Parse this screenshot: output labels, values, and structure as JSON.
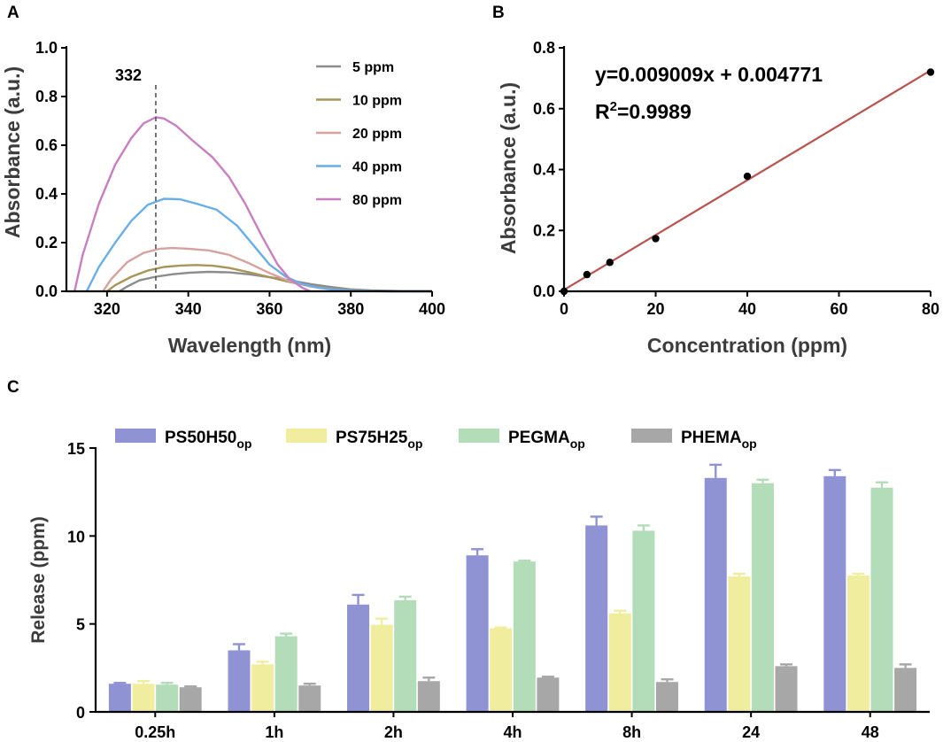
{
  "chart_data": [
    {
      "panel": "A",
      "type": "line",
      "xlabel": "Wavelength (nm)",
      "ylabel": "Absorbance (a.u.)",
      "xlim": [
        310,
        400
      ],
      "ylim": [
        0,
        1.0
      ],
      "xticks": [
        "320",
        "340",
        "360",
        "380",
        "400"
      ],
      "yticks": [
        "0.0",
        "0.2",
        "0.4",
        "0.6",
        "0.8",
        "1.0"
      ],
      "annotation": "332",
      "annotation_x": 332,
      "series": [
        {
          "name": "5 ppm",
          "color": "#8c8c8c",
          "x": [
            323,
            325,
            328,
            332,
            336,
            340,
            345,
            350,
            355,
            360,
            365,
            370,
            375,
            380,
            385,
            390,
            395,
            400
          ],
          "y": [
            0.0,
            0.02,
            0.045,
            0.06,
            0.07,
            0.076,
            0.08,
            0.078,
            0.07,
            0.058,
            0.045,
            0.03,
            0.018,
            0.008,
            0.004,
            0.002,
            0.0,
            0.0
          ]
        },
        {
          "name": "10 ppm",
          "color": "#a8955a",
          "x": [
            320,
            322,
            326,
            330,
            334,
            338,
            342,
            346,
            350,
            355,
            360,
            365,
            370,
            375,
            380,
            385,
            390,
            400
          ],
          "y": [
            0.0,
            0.025,
            0.06,
            0.085,
            0.1,
            0.106,
            0.108,
            0.105,
            0.096,
            0.078,
            0.058,
            0.038,
            0.022,
            0.01,
            0.004,
            0.002,
            0.0,
            0.0
          ]
        },
        {
          "name": "20 ppm",
          "color": "#d6a29e",
          "x": [
            319,
            321,
            325,
            329,
            333,
            336,
            340,
            345,
            350,
            355,
            360,
            365,
            370,
            375,
            380,
            385,
            390,
            400
          ],
          "y": [
            0.0,
            0.05,
            0.12,
            0.158,
            0.175,
            0.178,
            0.175,
            0.168,
            0.15,
            0.115,
            0.075,
            0.04,
            0.02,
            0.008,
            0.003,
            0.001,
            0.0,
            0.0
          ]
        },
        {
          "name": "40 ppm",
          "color": "#6aaee8",
          "x": [
            315,
            318,
            322,
            326,
            330,
            334,
            338,
            342,
            347,
            352,
            356,
            360,
            364,
            368,
            372,
            376,
            380,
            385,
            390,
            400
          ],
          "y": [
            0.0,
            0.1,
            0.2,
            0.29,
            0.355,
            0.38,
            0.378,
            0.36,
            0.335,
            0.27,
            0.19,
            0.11,
            0.06,
            0.03,
            0.015,
            0.007,
            0.003,
            0.001,
            0.0,
            0.0
          ]
        },
        {
          "name": "80 ppm",
          "color": "#c87fc0",
          "x": [
            312,
            314,
            318,
            322,
            326,
            329,
            332,
            334,
            337,
            341,
            346,
            350,
            354,
            358,
            362,
            365,
            368,
            370
          ],
          "y": [
            0.0,
            0.15,
            0.36,
            0.52,
            0.63,
            0.69,
            0.715,
            0.71,
            0.68,
            0.62,
            0.55,
            0.47,
            0.36,
            0.23,
            0.11,
            0.05,
            0.015,
            0.0
          ]
        }
      ]
    },
    {
      "panel": "B",
      "type": "scatter",
      "xlabel": "Concentration (ppm)",
      "ylabel": "Absorbance (a.u.)",
      "xlim": [
        0,
        80
      ],
      "ylim": [
        0,
        0.8
      ],
      "xticks": [
        "0",
        "20",
        "40",
        "60",
        "80"
      ],
      "yticks": [
        "0.0",
        "0.2",
        "0.4",
        "0.6",
        "0.8"
      ],
      "x": [
        0,
        5,
        10,
        20,
        40,
        80
      ],
      "y": [
        0.0,
        0.055,
        0.095,
        0.173,
        0.378,
        0.72
      ],
      "fit_slope": 0.009009,
      "fit_intercept": 0.004771,
      "fit_color": "#b85450",
      "equation": "y=0.009009x + 0.004771",
      "r2_label": "R",
      "r2_sup": "2",
      "r2_value": "=0.9989"
    },
    {
      "panel": "C",
      "type": "bar",
      "xlabel": "",
      "ylabel": "Release (ppm)",
      "ylim": [
        0,
        15
      ],
      "yticks": [
        "0",
        "5",
        "10",
        "15"
      ],
      "categories": [
        "0.25h",
        "1h",
        "2h",
        "4h",
        "8h",
        "24",
        "48"
      ],
      "series": [
        {
          "name": "PS50H50",
          "sub": "op",
          "color": "#8f93d4",
          "values": [
            1.6,
            3.5,
            6.1,
            8.9,
            10.6,
            13.3,
            13.4
          ],
          "errors": [
            0.05,
            0.35,
            0.55,
            0.35,
            0.5,
            0.75,
            0.35
          ]
        },
        {
          "name": "PS75H25",
          "sub": "op",
          "color": "#f1ed9f",
          "values": [
            1.6,
            2.7,
            4.95,
            4.75,
            5.6,
            7.7,
            7.75
          ],
          "errors": [
            0.15,
            0.15,
            0.35,
            0.05,
            0.15,
            0.15,
            0.1
          ]
        },
        {
          "name": "PEGMA",
          "sub": "op",
          "color": "#b3dcb9",
          "values": [
            1.55,
            4.3,
            6.35,
            8.55,
            10.3,
            13.0,
            12.75
          ],
          "errors": [
            0.1,
            0.15,
            0.2,
            0.05,
            0.3,
            0.2,
            0.3
          ]
        },
        {
          "name": "PHEMA",
          "sub": "op",
          "color": "#a7a7a7",
          "values": [
            1.4,
            1.5,
            1.75,
            1.95,
            1.7,
            2.6,
            2.5
          ],
          "errors": [
            0.05,
            0.1,
            0.2,
            0.05,
            0.15,
            0.1,
            0.2
          ]
        }
      ]
    }
  ]
}
